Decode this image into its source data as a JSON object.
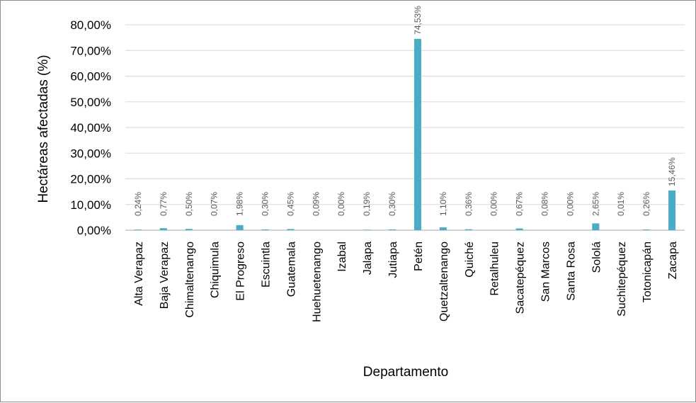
{
  "chart_data": {
    "type": "bar",
    "title": "",
    "xlabel": "Departamento",
    "ylabel": "Hectáreas afectadas (%)",
    "ylim": [
      0,
      80
    ],
    "ytick_labels": [
      "0,00%",
      "10,00%",
      "20,00%",
      "30,00%",
      "40,00%",
      "50,00%",
      "60,00%",
      "70,00%",
      "80,00%"
    ],
    "grid": "horizontal",
    "legend": "none",
    "bar_color": "#4bacc6",
    "categories": [
      "Alta Verapaz",
      "Baja Verapaz",
      "Chimaltenango",
      "Chiquimula",
      "El Progreso",
      "Escuintla",
      "Guatemala",
      "Huehuetenango",
      "Izabal",
      "Jalapa",
      "Jutiapa",
      "Petén",
      "Quetzaltenango",
      "Quiché",
      "Retalhuleu",
      "Sacatepéquez",
      "San Marcos",
      "Santa Rosa",
      "Sololá",
      "Suchitepéquez",
      "Totonicapán",
      "Zacapa"
    ],
    "values": [
      0.24,
      0.77,
      0.5,
      0.07,
      1.98,
      0.3,
      0.45,
      0.09,
      0.0,
      0.19,
      0.3,
      74.53,
      1.1,
      0.36,
      0.0,
      0.67,
      0.08,
      0.0,
      2.65,
      0.01,
      0.26,
      15.46
    ],
    "data_labels": [
      "0,24%",
      "0,77%",
      "0,50%",
      "0,07%",
      "1,98%",
      "0,30%",
      "0,45%",
      "0,09%",
      "0,00%",
      "0,19%",
      "0,30%",
      "74,53%",
      "1,10%",
      "0,36%",
      "0,00%",
      "0,67%",
      "0,08%",
      "0,00%",
      "2,65%",
      "0,01%",
      "0,26%",
      "15,46%"
    ]
  }
}
